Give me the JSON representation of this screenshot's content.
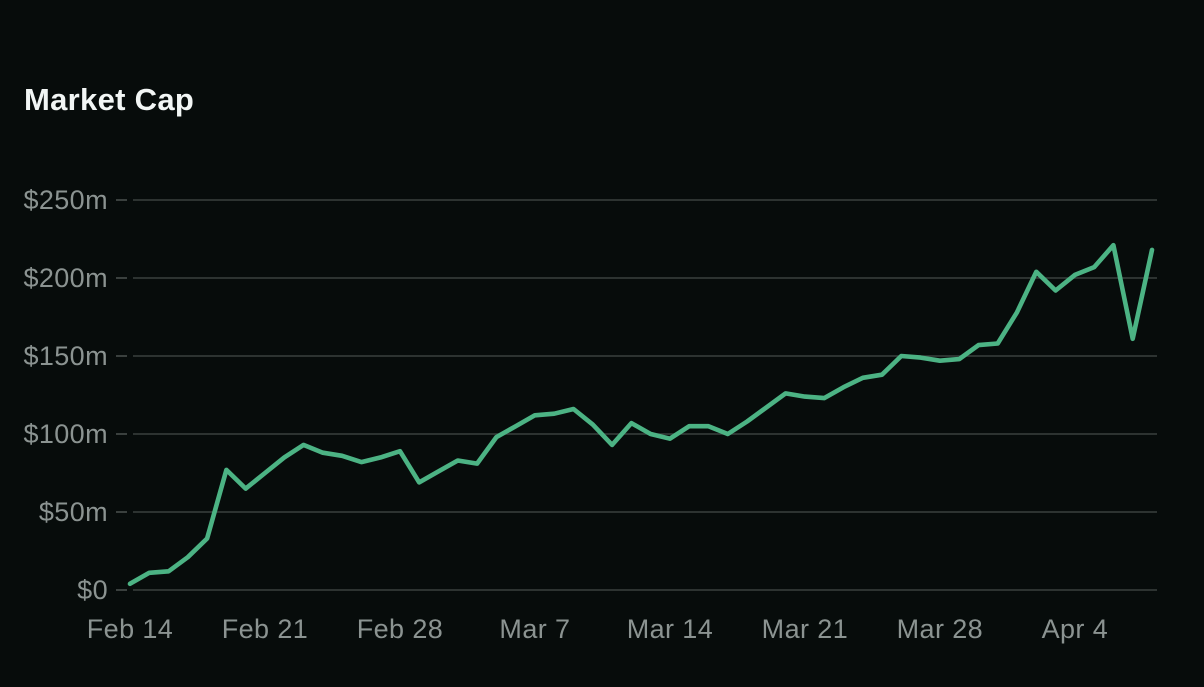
{
  "title": "Market Cap",
  "colors": {
    "background": "#070c0b",
    "title_text": "#f2f6f5",
    "axis_text": "#8b9391",
    "gridline": "#3a403e",
    "line": "#4cb384"
  },
  "chart_data": {
    "type": "line",
    "title": "Market Cap",
    "series_name": "Market Cap",
    "xlabel": "",
    "ylabel": "",
    "ylim": [
      0,
      250
    ],
    "grid": "horizontal",
    "legend": "none",
    "x": [
      "Feb 14",
      "Feb 15",
      "Feb 16",
      "Feb 17",
      "Feb 18",
      "Feb 19",
      "Feb 20",
      "Feb 21",
      "Feb 22",
      "Feb 23",
      "Feb 24",
      "Feb 25",
      "Feb 26",
      "Feb 27",
      "Feb 28",
      "Mar 1",
      "Mar 2",
      "Mar 3",
      "Mar 4",
      "Mar 5",
      "Mar 6",
      "Mar 7",
      "Mar 8",
      "Mar 9",
      "Mar 10",
      "Mar 11",
      "Mar 12",
      "Mar 13",
      "Mar 14",
      "Mar 15",
      "Mar 16",
      "Mar 17",
      "Mar 18",
      "Mar 19",
      "Mar 20",
      "Mar 21",
      "Mar 22",
      "Mar 23",
      "Mar 24",
      "Mar 25",
      "Mar 26",
      "Mar 27",
      "Mar 28",
      "Mar 29",
      "Mar 30",
      "Mar 31",
      "Apr 1",
      "Apr 2",
      "Apr 3",
      "Apr 4",
      "Apr 5",
      "Apr 6",
      "Apr 7",
      "Apr 8"
    ],
    "values": [
      4,
      11,
      12,
      21,
      33,
      77,
      65,
      75,
      85,
      93,
      88,
      86,
      82,
      85,
      89,
      69,
      76,
      83,
      81,
      98,
      105,
      112,
      113,
      116,
      106,
      93,
      107,
      100,
      97,
      105,
      105,
      100,
      108,
      117,
      126,
      124,
      123,
      130,
      136,
      138,
      150,
      149,
      147,
      148,
      157,
      158,
      178,
      204,
      192,
      202,
      207,
      221,
      161,
      218
    ],
    "unit": "million USD",
    "y_ticks": [
      {
        "value": 0,
        "label": "$0"
      },
      {
        "value": 50,
        "label": "$50m"
      },
      {
        "value": 100,
        "label": "$100m"
      },
      {
        "value": 150,
        "label": "$150m"
      },
      {
        "value": 200,
        "label": "$200m"
      },
      {
        "value": 250,
        "label": "$250m"
      }
    ],
    "x_ticks": [
      "Feb 14",
      "Feb 21",
      "Feb 28",
      "Mar 7",
      "Mar 14",
      "Mar 21",
      "Mar 28",
      "Apr 4"
    ]
  }
}
